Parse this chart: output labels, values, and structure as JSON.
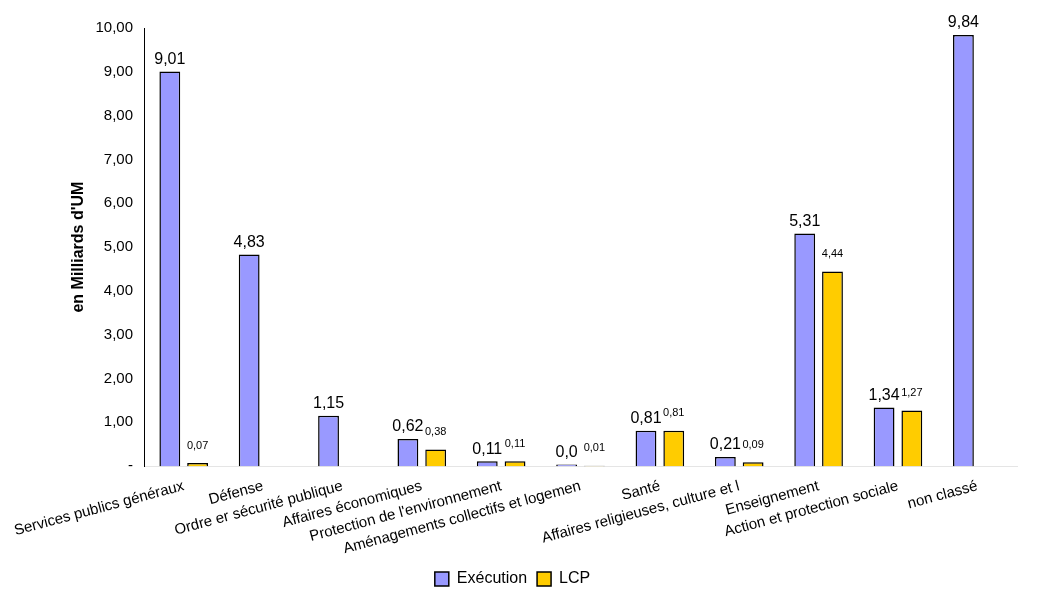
{
  "chart_data": {
    "type": "bar",
    "ylabel": "en Milliards d'UM",
    "categories": [
      "Services publics généraux",
      "Défense",
      "Ordre er sécurité publique",
      "Affaires économiques",
      "Protection de l'environnement",
      "Aménagements collectifs et logemen",
      "Santé",
      "Affaires religieuses, culture et l",
      "Enseignement",
      "Action et protection sociale",
      "non classé"
    ],
    "series": [
      {
        "name": "Exécution",
        "color": "#9999ff",
        "values": [
          9.01,
          4.83,
          1.15,
          0.62,
          0.11,
          0.04,
          0.81,
          0.21,
          5.31,
          1.34,
          9.84
        ],
        "value_labels": [
          "9,01",
          "4,83",
          "1,15",
          "0,62",
          "0,11",
          "0,0",
          "0,81",
          "0,21",
          "5,31",
          "1,34",
          "9,84"
        ]
      },
      {
        "name": "LCP",
        "color": "#ffcc00",
        "values": [
          0.07,
          0,
          0,
          0.38,
          0.11,
          0.01,
          0.81,
          0.09,
          4.44,
          1.27,
          null
        ],
        "value_labels": [
          "0,07",
          null,
          null,
          "0,38",
          "0,11",
          "0,01",
          "0,81",
          "0,09",
          "4,44",
          "1,27",
          null
        ]
      }
    ],
    "ylim": [
      0,
      10
    ],
    "yticks": [
      {
        "value": 0,
        "label": "-"
      },
      {
        "value": 1,
        "label": "1,00"
      },
      {
        "value": 2,
        "label": "2,00"
      },
      {
        "value": 3,
        "label": "3,00"
      },
      {
        "value": 4,
        "label": "4,00"
      },
      {
        "value": 5,
        "label": "5,00"
      },
      {
        "value": 6,
        "label": "6,00"
      },
      {
        "value": 7,
        "label": "7,00"
      },
      {
        "value": 8,
        "label": "8,00"
      },
      {
        "value": 9,
        "label": "9,00"
      },
      {
        "value": 10,
        "label": "10,00"
      }
    ],
    "legend": "bottom"
  }
}
